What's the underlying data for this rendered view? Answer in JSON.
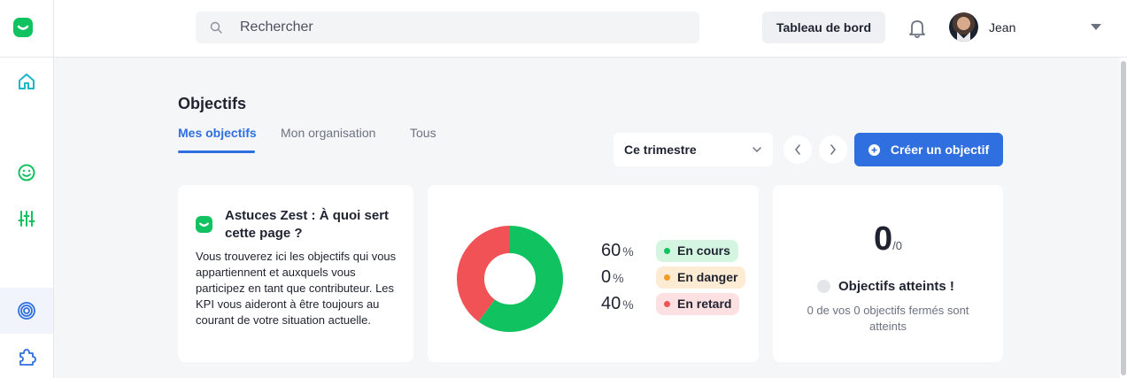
{
  "colors": {
    "brand_green": "#11c260",
    "accent_blue": "#2f6fe0",
    "teal": "#19b8c9",
    "danger_red": "#f05256",
    "warn_orange": "#f29b25"
  },
  "sidebar": {
    "logo_icon": "zest-logo-icon",
    "items": [
      {
        "icon": "home-icon",
        "active": false
      },
      {
        "icon": "smiley-icon",
        "active": false
      },
      {
        "icon": "sliders-icon",
        "active": false
      },
      {
        "icon": "target-icon",
        "active": true
      },
      {
        "icon": "puzzle-icon",
        "active": false
      }
    ]
  },
  "header": {
    "search_placeholder": "Rechercher",
    "dashboard_label": "Tableau de bord",
    "bell_icon": "bell-icon",
    "user_name": "Jean"
  },
  "main": {
    "title": "Objectifs",
    "tabs": [
      {
        "label": "Mes objectifs",
        "active": true
      },
      {
        "label": "Mon organisation",
        "active": false
      },
      {
        "label": "Tous",
        "active": false
      }
    ],
    "period_select": "Ce trimestre",
    "create_button": "Créer un objectif"
  },
  "tip_card": {
    "title": "Astuces Zest : À quoi sert cette page ?",
    "text": "Vous trouverez ici les objectifs qui vous appartiennent et auxquels vous participez en tant que contributeur. Les KPI vous aideront à être toujours au courant de votre situation actuelle."
  },
  "status_card": {
    "chart_data": {
      "type": "pie",
      "categories": [
        "En cours",
        "En danger",
        "En retard"
      ],
      "values": [
        60,
        0,
        40
      ],
      "colors": [
        "#11c260",
        "#f29b25",
        "#f05256"
      ]
    },
    "rows": [
      {
        "value": "60",
        "unit": "%",
        "label": "En cours",
        "tone": "green"
      },
      {
        "value": "0",
        "unit": "%",
        "label": "En danger",
        "tone": "orange"
      },
      {
        "value": "40",
        "unit": "%",
        "label": "En retard",
        "tone": "red"
      }
    ]
  },
  "achieved_card": {
    "count": "0",
    "total": "/0",
    "label": "Objectifs atteints !",
    "subtitle": "0 de vos 0 objectifs fermés sont atteints"
  }
}
